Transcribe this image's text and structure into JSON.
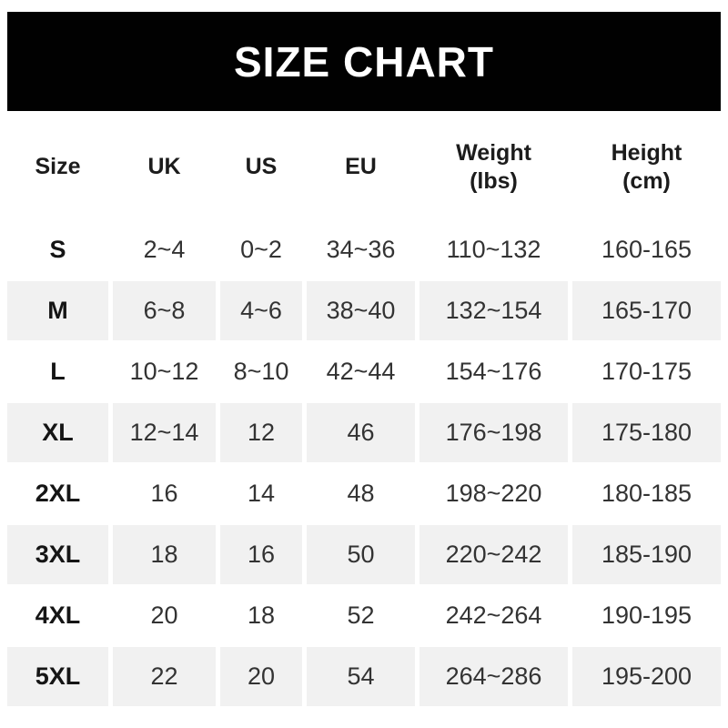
{
  "title": "SIZE CHART",
  "colors": {
    "banner_bg": "#010101",
    "banner_text": "#ffffff",
    "row_alt_bg": "#f1f1f1",
    "row_bg": "#ffffff",
    "header_text": "#1c1c1c",
    "value_text": "#333333"
  },
  "header_display": [
    {
      "label": "Size",
      "sub": ""
    },
    {
      "label": "UK",
      "sub": ""
    },
    {
      "label": "US",
      "sub": ""
    },
    {
      "label": "EU",
      "sub": ""
    },
    {
      "label": "Weight",
      "sub": "(lbs)"
    },
    {
      "label": "Height",
      "sub": "(cm)"
    }
  ],
  "chart_data": {
    "type": "table",
    "title": "SIZE CHART",
    "columns": [
      "Size",
      "UK",
      "US",
      "EU",
      "Weight (lbs)",
      "Height (cm)"
    ],
    "rows": [
      [
        "S",
        "2~4",
        "0~2",
        "34~36",
        "110~132",
        "160-165"
      ],
      [
        "M",
        "6~8",
        "4~6",
        "38~40",
        "132~154",
        "165-170"
      ],
      [
        "L",
        "10~12",
        "8~10",
        "42~44",
        "154~176",
        "170-175"
      ],
      [
        "XL",
        "12~14",
        "12",
        "46",
        "176~198",
        "175-180"
      ],
      [
        "2XL",
        "16",
        "14",
        "48",
        "198~220",
        "180-185"
      ],
      [
        "3XL",
        "18",
        "16",
        "50",
        "220~242",
        "185-190"
      ],
      [
        "4XL",
        "20",
        "18",
        "52",
        "242~264",
        "190-195"
      ],
      [
        "5XL",
        "22",
        "20",
        "54",
        "264~286",
        "195-200"
      ]
    ],
    "layout": {
      "alternating_row_shading": "rows M, XL, 3XL, 5XL and header are light gray; others white",
      "column_separators": "thin white gutters between columns"
    }
  }
}
